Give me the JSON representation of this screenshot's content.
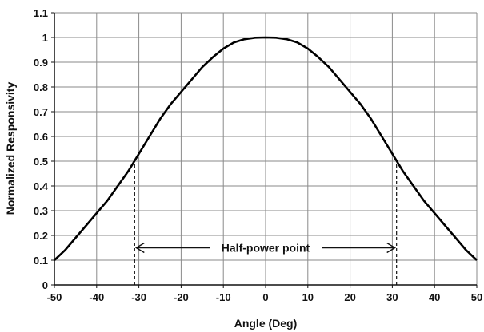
{
  "chart_data": {
    "type": "line",
    "xlabel": "Angle (Deg)",
    "ylabel": "Normalized Responsivity",
    "xlim": [
      -50,
      50
    ],
    "ylim": [
      0,
      1.1
    ],
    "grid": true,
    "x_ticks": [
      "-50",
      "-40",
      "-30",
      "-20",
      "-10",
      "0",
      "10",
      "20",
      "30",
      "40",
      "50"
    ],
    "y_ticks": [
      "0",
      "0.1",
      "0.2",
      "0.3",
      "0.4",
      "0.5",
      "0.6",
      "0.7",
      "0.8",
      "0.9",
      "1",
      "1.1"
    ],
    "series": [
      {
        "x": [
          -50,
          -47.5,
          -45,
          -42.5,
          -40,
          -37.5,
          -35,
          -32.5,
          -30,
          -27.5,
          -25,
          -22.5,
          -20,
          -17.5,
          -15,
          -12.5,
          -10,
          -7.5,
          -5,
          -2.5,
          0,
          2.5,
          5,
          7.5,
          10,
          12.5,
          15,
          17.5,
          20,
          22.5,
          25,
          27.5,
          30,
          32.5,
          35,
          37.5,
          40,
          42.5,
          45,
          47.5,
          50
        ],
        "y": [
          0.1,
          0.14,
          0.19,
          0.24,
          0.29,
          0.34,
          0.4,
          0.46,
          0.53,
          0.6,
          0.67,
          0.73,
          0.78,
          0.83,
          0.88,
          0.92,
          0.955,
          0.98,
          0.993,
          0.999,
          1.0,
          0.999,
          0.993,
          0.98,
          0.955,
          0.92,
          0.88,
          0.83,
          0.78,
          0.73,
          0.67,
          0.6,
          0.53,
          0.46,
          0.4,
          0.34,
          0.29,
          0.24,
          0.19,
          0.14,
          0.1
        ]
      }
    ],
    "annotations": [
      {
        "text": "Half-power point",
        "x_from": -31,
        "x_to": 31,
        "y": 0.15
      }
    ],
    "markers": [
      {
        "x": -31,
        "y_from": 0,
        "y_to": 0.5
      },
      {
        "x": 31,
        "y_from": 0,
        "y_to": 0.5
      }
    ]
  }
}
